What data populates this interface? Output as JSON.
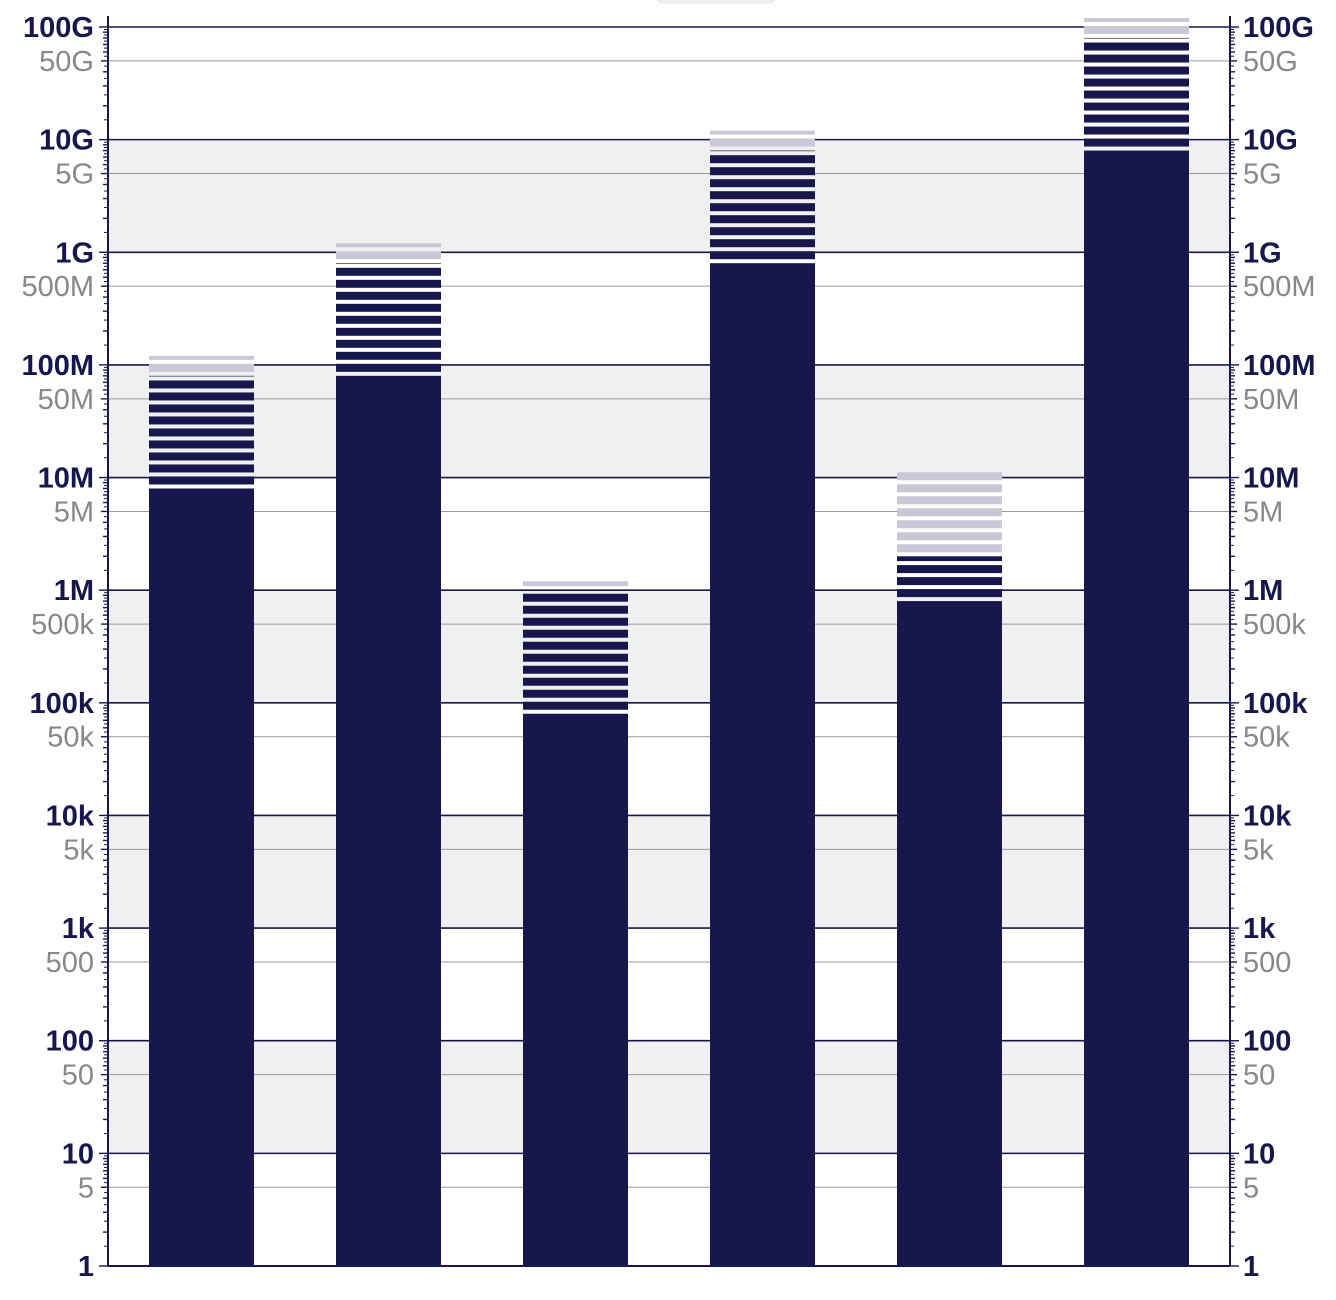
{
  "chart_data": {
    "type": "bar",
    "title": "",
    "xlabel": "",
    "ylabel": "",
    "yscale": "log",
    "ylim": [
      1,
      100000000000
    ],
    "grid": true,
    "legend": "none",
    "categories": [
      "",
      "",
      "",
      "",
      "",
      ""
    ],
    "series": [
      {
        "values": [
          8000000,
          80000000,
          80000,
          800000000,
          800000,
          8000000000
        ]
      },
      {
        "values": [
          80000000,
          800000000,
          1000000,
          8000000000,
          2000000,
          80000000000
        ]
      },
      {
        "values": [
          120000000,
          1200000000,
          1200000,
          12000000000,
          12000000,
          120000000000
        ]
      }
    ],
    "major_ticks": [
      {
        "value": 1,
        "label": "1"
      },
      {
        "value": 10,
        "label": "10"
      },
      {
        "value": 100,
        "label": "100"
      },
      {
        "value": 1000,
        "label": "1k"
      },
      {
        "value": 10000,
        "label": "10k"
      },
      {
        "value": 100000,
        "label": "100k"
      },
      {
        "value": 1000000,
        "label": "1M"
      },
      {
        "value": 10000000,
        "label": "10M"
      },
      {
        "value": 100000000,
        "label": "100M"
      },
      {
        "value": 1000000000,
        "label": "1G"
      },
      {
        "value": 10000000000,
        "label": "10G"
      },
      {
        "value": 100000000000,
        "label": "100G"
      }
    ],
    "minor_ticks": [
      {
        "value": 5,
        "label": "5"
      },
      {
        "value": 50,
        "label": "50"
      },
      {
        "value": 500,
        "label": "500"
      },
      {
        "value": 5000,
        "label": "5k"
      },
      {
        "value": 50000,
        "label": "50k"
      },
      {
        "value": 500000,
        "label": "500k"
      },
      {
        "value": 5000000,
        "label": "5M"
      },
      {
        "value": 50000000,
        "label": "50M"
      },
      {
        "value": 500000000,
        "label": "500M"
      },
      {
        "value": 5000000000,
        "label": "5G"
      },
      {
        "value": 50000000000,
        "label": "50G"
      }
    ]
  },
  "colors": {
    "bar": "#17174d",
    "light_stripe": "#c8c8d6",
    "band": "#f0f0f0",
    "major_grid": "#17174d",
    "minor_grid": "#999999",
    "major_label": "#17174d",
    "minor_label": "#888888"
  }
}
